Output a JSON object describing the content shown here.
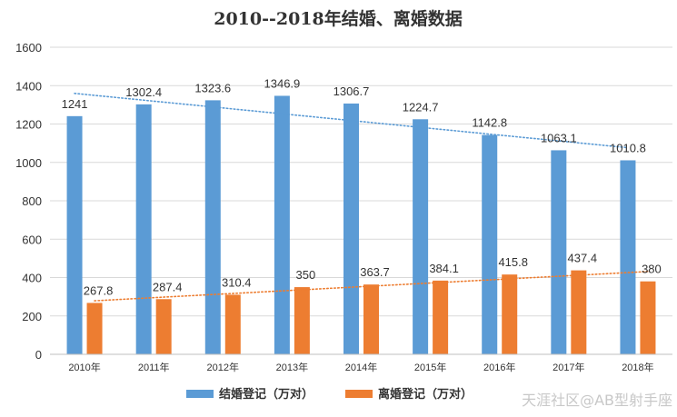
{
  "chart_data": {
    "type": "bar",
    "title": "2010--2018年结婚、离婚数据",
    "categories": [
      "2010年",
      "2011年",
      "2012年",
      "2013年",
      "2014年",
      "2015年",
      "2016年",
      "2017年",
      "2018年"
    ],
    "series": [
      {
        "name": "结婚登记（万对）",
        "color": "#5B9BD5",
        "values": [
          1241,
          1302.4,
          1323.6,
          1346.9,
          1306.7,
          1224.7,
          1142.8,
          1063.1,
          1010.8
        ],
        "labels": [
          "1241",
          "1302.4",
          "1323.6",
          "1346.9",
          "1306.7",
          "1224.7",
          "1142.8",
          "1063.1",
          "1010.8"
        ]
      },
      {
        "name": "离婚登记（万对）",
        "color": "#ED7D31",
        "values": [
          267.8,
          287.4,
          310.4,
          350,
          363.7,
          384.1,
          415.8,
          437.4,
          380
        ],
        "labels": [
          "267.8",
          "287.4",
          "310.4",
          "350",
          "363.7",
          "384.1",
          "415.8",
          "437.4",
          "380"
        ]
      }
    ],
    "trendlines": [
      {
        "series": 0,
        "type": "linear",
        "style": "dotted"
      },
      {
        "series": 1,
        "type": "linear",
        "style": "dotted"
      }
    ],
    "ylim": [
      0,
      1600
    ],
    "yticks": [
      "0",
      "200",
      "400",
      "600",
      "800",
      "1000",
      "1200",
      "1400",
      "1600"
    ],
    "grid": true,
    "legend_position": "bottom"
  },
  "watermark": "天涯社区@AB型射手座"
}
